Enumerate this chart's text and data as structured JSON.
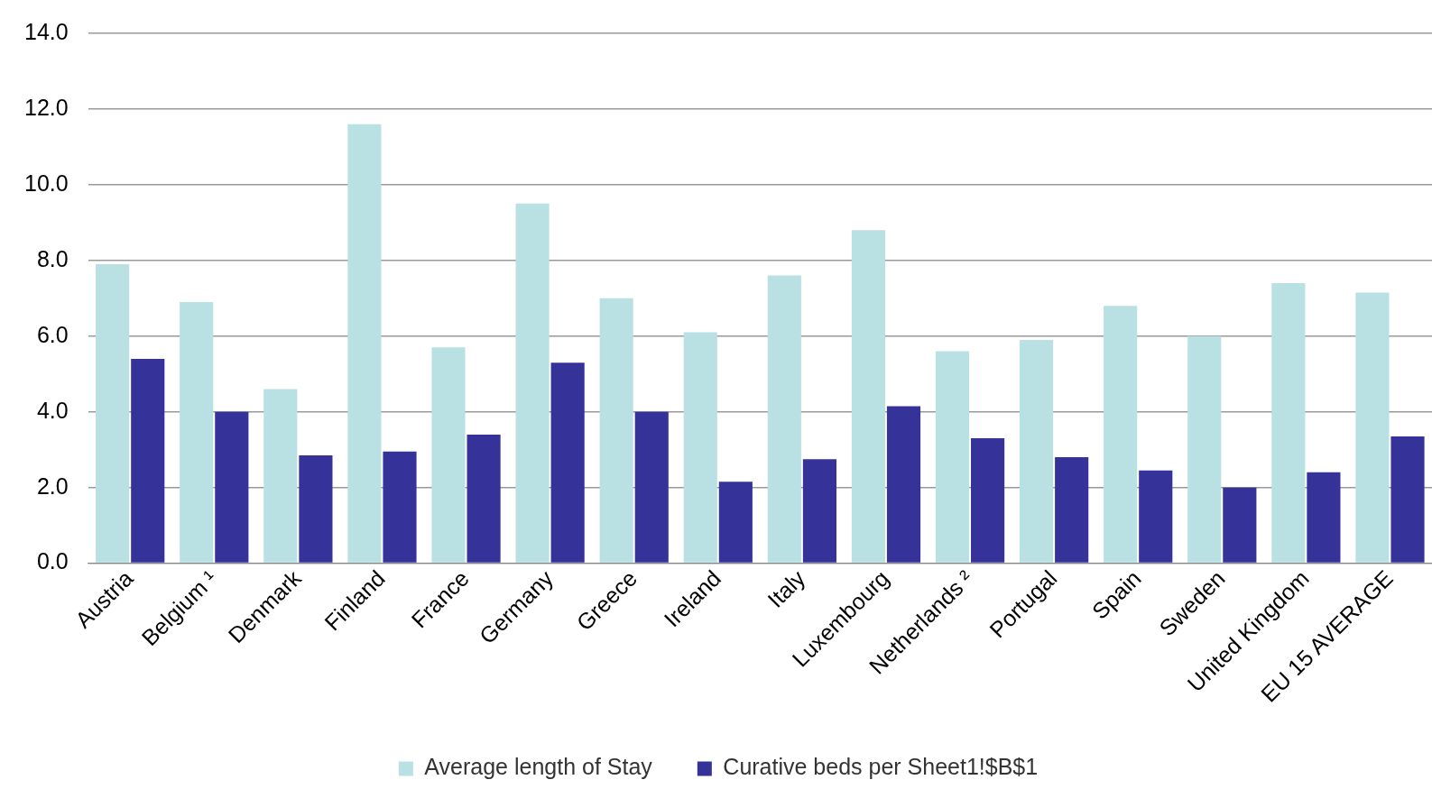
{
  "chart_data": {
    "type": "bar",
    "categories": [
      "Austria",
      "Belgium ¹",
      "Denmark",
      "Finland",
      "France",
      "Germany",
      "Greece",
      "Ireland",
      "Italy",
      "Luxembourg",
      "Netherlands ²",
      "Portugal",
      "Spain",
      "Sweden",
      "United Kingdom",
      "EU 15 AVERAGE"
    ],
    "series": [
      {
        "name": "Average length of Stay",
        "color": "#b9e0e3",
        "values": [
          7.9,
          6.9,
          4.6,
          11.6,
          5.7,
          9.5,
          7.0,
          6.1,
          7.6,
          8.8,
          5.6,
          5.9,
          6.8,
          6.0,
          7.4,
          7.15
        ]
      },
      {
        "name": "Curative beds per Sheet1!$B$1",
        "color": "#35339a",
        "values": [
          5.4,
          4.0,
          2.85,
          2.95,
          3.4,
          5.3,
          4.0,
          2.15,
          2.75,
          4.15,
          3.3,
          2.8,
          2.45,
          2.0,
          2.4,
          3.35
        ]
      }
    ],
    "ylim": [
      0,
      14
    ],
    "yticks": [
      {
        "value": 0,
        "label": "0.0"
      },
      {
        "value": 2,
        "label": "2.0"
      },
      {
        "value": 4,
        "label": "4.0"
      },
      {
        "value": 6,
        "label": "6.0"
      },
      {
        "value": 8,
        "label": "8.0"
      },
      {
        "value": 10,
        "label": "10.0"
      },
      {
        "value": 12,
        "label": "12.0"
      },
      {
        "value": 14,
        "label": "14.0"
      }
    ],
    "grid": "y",
    "legend": "bottom"
  }
}
